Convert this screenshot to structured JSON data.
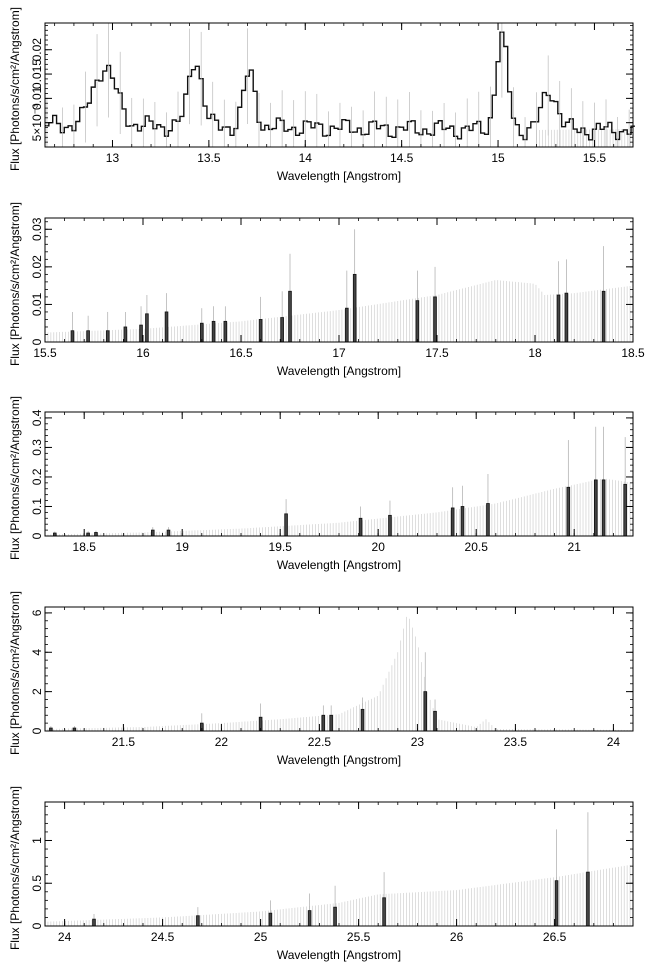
{
  "chart_data": [
    {
      "type": "line",
      "xlabel": "Wavelength [Angstrom]",
      "ylabel": "Flux [Photons/s/cm²/Angstrom]",
      "xlim": [
        12.65,
        15.7
      ],
      "ylim": [
        0,
        0.0255
      ],
      "x_ticks": [
        13,
        13.5,
        14,
        14.5,
        15,
        15.5
      ],
      "x_tick_labels": [
        "13",
        "13.5",
        "14",
        "14.5",
        "15",
        "15.5"
      ],
      "y_ticks": [
        0.005,
        0.01,
        0.015,
        0.02
      ],
      "y_tick_labels": [
        "5×10⁻³",
        "0.01",
        "0.015",
        "0.02"
      ],
      "grid": false,
      "lines": [
        {
          "x": 12.95,
          "flux": 0.012,
          "width": 0.06
        },
        {
          "x": 13.42,
          "flux": 0.014,
          "width": 0.035
        },
        {
          "x": 13.7,
          "flux": 0.011,
          "width": 0.03
        },
        {
          "x": 15.01,
          "flux": 0.019,
          "width": 0.03
        },
        {
          "x": 15.26,
          "flux": 0.008,
          "width": 0.04
        }
      ],
      "continuum": [
        [
          12.65,
          0.0045
        ],
        [
          14.0,
          0.004
        ],
        [
          15.0,
          0.0035
        ],
        [
          15.7,
          0.0035
        ]
      ],
      "model_start": 15.2,
      "model_points": [
        [
          15.2,
          0.0035
        ],
        [
          15.7,
          0.0037
        ]
      ]
    },
    {
      "type": "line",
      "xlabel": "Wavelength [Angstrom]",
      "ylabel": "Flux [Photons/s/cm²/Angstrom]",
      "xlim": [
        15.5,
        18.5
      ],
      "ylim": [
        0,
        0.033
      ],
      "x_ticks": [
        15.5,
        16,
        16.5,
        17,
        17.5,
        18,
        18.5
      ],
      "x_tick_labels": [
        "15.5",
        "16",
        "16.5",
        "17",
        "17.5",
        "18",
        "18.5"
      ],
      "y_ticks": [
        0,
        0.01,
        0.02,
        0.03
      ],
      "y_tick_labels": [
        "0",
        "0.01",
        "0.02",
        "0.03"
      ],
      "grid": false,
      "model_start": 15.5,
      "model_points": [
        [
          15.5,
          0.0025
        ],
        [
          16.0,
          0.0035
        ],
        [
          16.5,
          0.0055
        ],
        [
          17.0,
          0.0085
        ],
        [
          17.5,
          0.0125
        ],
        [
          17.8,
          0.0165
        ],
        [
          18.0,
          0.0155
        ],
        [
          18.05,
          0.0125
        ],
        [
          18.2,
          0.013
        ],
        [
          18.5,
          0.015
        ]
      ],
      "bars": [
        {
          "x": 15.64,
          "y": 0.003,
          "err": 0.005
        },
        {
          "x": 15.72,
          "y": 0.003,
          "err": 0.004
        },
        {
          "x": 15.82,
          "y": 0.003,
          "err": 0.005
        },
        {
          "x": 15.91,
          "y": 0.004,
          "err": 0.004
        },
        {
          "x": 15.99,
          "y": 0.0045,
          "err": 0.005
        },
        {
          "x": 16.02,
          "y": 0.0075,
          "err": 0.005
        },
        {
          "x": 16.12,
          "y": 0.008,
          "err": 0.005
        },
        {
          "x": 16.3,
          "y": 0.005,
          "err": 0.004
        },
        {
          "x": 16.36,
          "y": 0.0055,
          "err": 0.004
        },
        {
          "x": 16.42,
          "y": 0.0055,
          "err": 0.004
        },
        {
          "x": 16.6,
          "y": 0.006,
          "err": 0.006
        },
        {
          "x": 16.71,
          "y": 0.0065,
          "err": 0.007
        },
        {
          "x": 16.75,
          "y": 0.0135,
          "err": 0.01
        },
        {
          "x": 17.04,
          "y": 0.009,
          "err": 0.01
        },
        {
          "x": 17.08,
          "y": 0.018,
          "err": 0.012
        },
        {
          "x": 17.4,
          "y": 0.011,
          "err": 0.008
        },
        {
          "x": 17.49,
          "y": 0.012,
          "err": 0.008
        },
        {
          "x": 18.12,
          "y": 0.0125,
          "err": 0.009
        },
        {
          "x": 18.16,
          "y": 0.013,
          "err": 0.009
        },
        {
          "x": 18.35,
          "y": 0.0135,
          "err": 0.012
        }
      ]
    },
    {
      "type": "line",
      "xlabel": "Wavelength [Angstrom]",
      "ylabel": "Flux [Photons/s/cm²/Angstrom]",
      "xlim": [
        18.3,
        21.3
      ],
      "ylim": [
        0,
        0.42
      ],
      "x_ticks": [
        18.5,
        19,
        19.5,
        20,
        20.5,
        21
      ],
      "x_tick_labels": [
        "18.5",
        "19",
        "19.5",
        "20",
        "20.5",
        "21"
      ],
      "y_ticks": [
        0,
        0.1,
        0.2,
        0.3,
        0.4
      ],
      "y_tick_labels": [
        "0",
        "0.1",
        "0.2",
        "0.3",
        "0.4"
      ],
      "grid": false,
      "model_start": 18.3,
      "model_points": [
        [
          18.3,
          0.005
        ],
        [
          18.8,
          0.012
        ],
        [
          19.3,
          0.025
        ],
        [
          19.8,
          0.045
        ],
        [
          20.3,
          0.08
        ],
        [
          20.6,
          0.11
        ],
        [
          20.9,
          0.16
        ],
        [
          21.15,
          0.195
        ],
        [
          21.3,
          0.18
        ]
      ],
      "bars": [
        {
          "x": 18.35,
          "y": 0.01,
          "err": 0.005
        },
        {
          "x": 18.52,
          "y": 0.01,
          "err": 0.006
        },
        {
          "x": 18.56,
          "y": 0.012,
          "err": 0.006
        },
        {
          "x": 18.85,
          "y": 0.02,
          "err": 0.01
        },
        {
          "x": 18.93,
          "y": 0.02,
          "err": 0.01
        },
        {
          "x": 19.53,
          "y": 0.075,
          "err": 0.05
        },
        {
          "x": 19.91,
          "y": 0.06,
          "err": 0.04
        },
        {
          "x": 20.06,
          "y": 0.07,
          "err": 0.05
        },
        {
          "x": 20.38,
          "y": 0.095,
          "err": 0.07
        },
        {
          "x": 20.43,
          "y": 0.1,
          "err": 0.07
        },
        {
          "x": 20.56,
          "y": 0.11,
          "err": 0.1
        },
        {
          "x": 20.97,
          "y": 0.165,
          "err": 0.16
        },
        {
          "x": 21.11,
          "y": 0.19,
          "err": 0.18
        },
        {
          "x": 21.15,
          "y": 0.19,
          "err": 0.18
        },
        {
          "x": 21.26,
          "y": 0.175,
          "err": 0.16
        }
      ]
    },
    {
      "type": "line",
      "xlabel": "Wavelength [Angstrom]",
      "ylabel": "Flux [Photons/s/cm²/Angstrom]",
      "xlim": [
        21.1,
        24.1
      ],
      "ylim": [
        0,
        6.3
      ],
      "x_ticks": [
        21.5,
        22,
        22.5,
        23,
        23.5,
        24
      ],
      "x_tick_labels": [
        "21.5",
        "22",
        "22.5",
        "23",
        "23.5",
        "24"
      ],
      "y_ticks": [
        0,
        2,
        4,
        6
      ],
      "y_tick_labels": [
        "0",
        "2",
        "4",
        "6"
      ],
      "grid": false,
      "model_start": 21.1,
      "model_points": [
        [
          21.1,
          0.1
        ],
        [
          21.6,
          0.2
        ],
        [
          22.0,
          0.4
        ],
        [
          22.3,
          0.6
        ],
        [
          22.6,
          0.85
        ],
        [
          22.8,
          1.8
        ],
        [
          22.9,
          4.0
        ],
        [
          22.95,
          6.0
        ],
        [
          23.0,
          4.5
        ],
        [
          23.05,
          2.0
        ],
        [
          23.1,
          0.6
        ],
        [
          23.3,
          0.2
        ],
        [
          23.35,
          0.6
        ],
        [
          23.4,
          0.1
        ],
        [
          24.1,
          0.05
        ]
      ],
      "bars": [
        {
          "x": 21.13,
          "y": 0.15,
          "err": 0.1
        },
        {
          "x": 21.25,
          "y": 0.15,
          "err": 0.1
        },
        {
          "x": 21.9,
          "y": 0.4,
          "err": 0.5
        },
        {
          "x": 22.2,
          "y": 0.7,
          "err": 0.7
        },
        {
          "x": 22.52,
          "y": 0.8,
          "err": 0.5
        },
        {
          "x": 22.56,
          "y": 0.8,
          "err": 0.5
        },
        {
          "x": 22.72,
          "y": 1.1,
          "err": 0.6
        },
        {
          "x": 23.04,
          "y": 2.0,
          "err": 2.0
        },
        {
          "x": 23.09,
          "y": 1.0,
          "err": 0.6
        }
      ]
    },
    {
      "type": "line",
      "xlabel": "Wavelength [Angstrom]",
      "ylabel": "Flux [Photons/s/cm²/Angstrom]",
      "xlim": [
        23.9,
        26.9
      ],
      "ylim": [
        0,
        1.45
      ],
      "x_ticks": [
        24,
        24.5,
        25,
        25.5,
        26,
        26.5
      ],
      "x_tick_labels": [
        "24",
        "24.5",
        "25",
        "25.5",
        "26",
        "26.5"
      ],
      "y_ticks": [
        0,
        0.5,
        1
      ],
      "y_tick_labels": [
        "0",
        "0.5",
        "1"
      ],
      "grid": false,
      "model_start": 23.9,
      "model_points": [
        [
          23.9,
          0.05
        ],
        [
          24.5,
          0.1
        ],
        [
          25.0,
          0.17
        ],
        [
          25.4,
          0.27
        ],
        [
          25.6,
          0.37
        ],
        [
          26.0,
          0.42
        ],
        [
          26.5,
          0.57
        ],
        [
          26.9,
          0.72
        ]
      ],
      "bars": [
        {
          "x": 24.15,
          "y": 0.08,
          "err": 0.06
        },
        {
          "x": 24.68,
          "y": 0.12,
          "err": 0.1
        },
        {
          "x": 25.05,
          "y": 0.15,
          "err": 0.15
        },
        {
          "x": 25.25,
          "y": 0.18,
          "err": 0.2
        },
        {
          "x": 25.38,
          "y": 0.22,
          "err": 0.25
        },
        {
          "x": 25.63,
          "y": 0.33,
          "err": 0.3
        },
        {
          "x": 26.51,
          "y": 0.53,
          "err": 0.6
        },
        {
          "x": 26.67,
          "y": 0.63,
          "err": 0.7
        }
      ]
    }
  ]
}
